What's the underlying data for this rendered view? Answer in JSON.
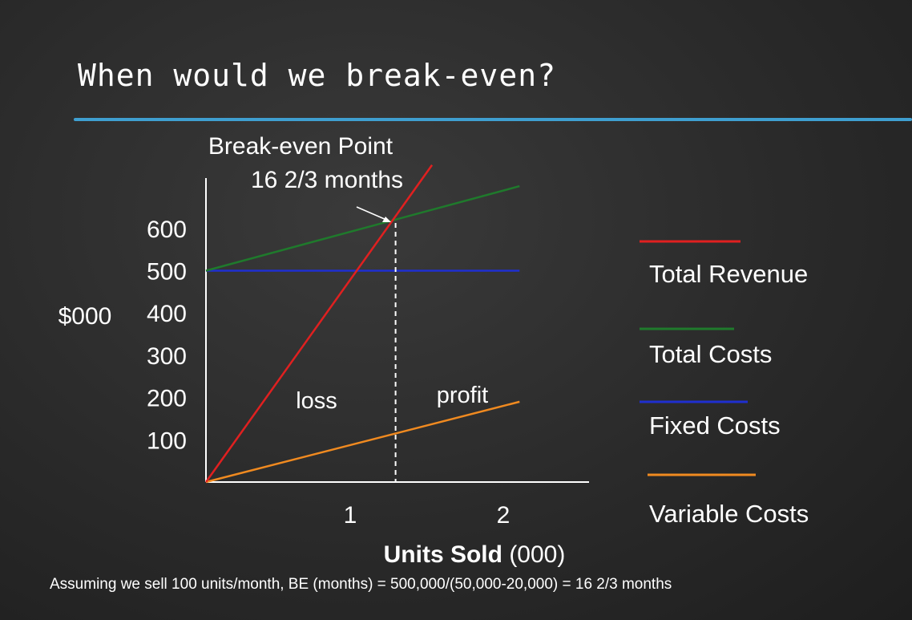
{
  "slide": {
    "title": "When would we break-even?",
    "footnote": "Assuming we sell 100 units/month, BE (months) = 500,000/(50,000-20,000) = 16 2/3 months"
  },
  "chart_data": {
    "type": "line",
    "ylabel": "$000",
    "xlabel_bold": "Units Sold",
    "xlabel_rest": "(000)",
    "yticks": [
      "600",
      "500",
      "400",
      "300",
      "200",
      "100"
    ],
    "xticks": [
      "1",
      "2"
    ],
    "break_even": {
      "label_line1": "Break-even Point",
      "label_line2": "16 2/3 months",
      "x": 1.3
    },
    "region_labels": {
      "left": "loss",
      "right": "profit"
    },
    "series": [
      {
        "name": "Total Revenue",
        "color": "#e02020",
        "x": [
          0,
          1.55
        ],
        "y": [
          0,
          750
        ]
      },
      {
        "name": "Total Costs",
        "color": "#1f7a2c",
        "x": [
          0,
          2.15
        ],
        "y": [
          500,
          700
        ]
      },
      {
        "name": "Fixed Costs",
        "color": "#1f2fd0",
        "x": [
          0,
          2.15
        ],
        "y": [
          500,
          500
        ]
      },
      {
        "name": "Variable Costs",
        "color": "#f08a20",
        "x": [
          0,
          2.15
        ],
        "y": [
          0,
          190
        ]
      }
    ],
    "xlim": [
      0,
      2.5
    ],
    "ylim": [
      0,
      600
    ]
  }
}
